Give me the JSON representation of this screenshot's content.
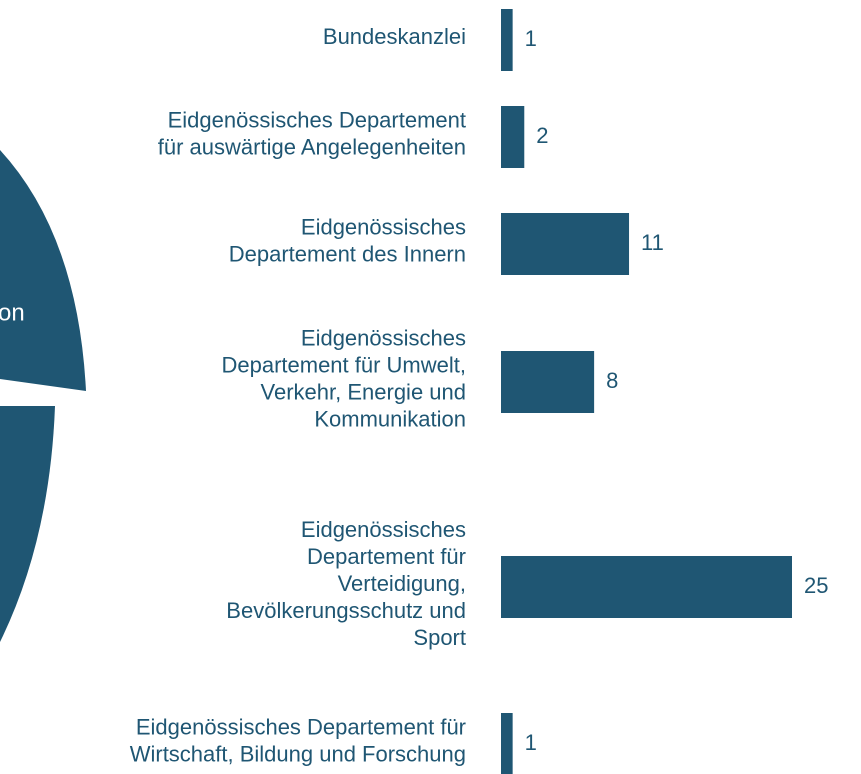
{
  "pie_fragment_text": "on",
  "chart_data": {
    "type": "bar",
    "categories": [
      [
        "Bundeskanzlei"
      ],
      [
        "Eidgenössisches Departement",
        "für auswärtige Angelegenheiten"
      ],
      [
        "Eidgenössisches",
        "Departement des Innern"
      ],
      [
        "Eidgenössisches",
        "Departement für Umwelt,",
        "Verkehr, Energie und",
        "Kommunikation"
      ],
      [
        "Eidgenössisches",
        "Departement für",
        "Verteidigung,",
        "Bevölkerungsschutz und",
        "Sport"
      ],
      [
        "Eidgenössisches  Departement für",
        "Wirtschaft, Bildung und Forschung"
      ]
    ],
    "values": [
      1,
      2,
      11,
      8,
      25,
      1
    ],
    "color": "#1f5673",
    "xlim": [
      0,
      25
    ]
  }
}
